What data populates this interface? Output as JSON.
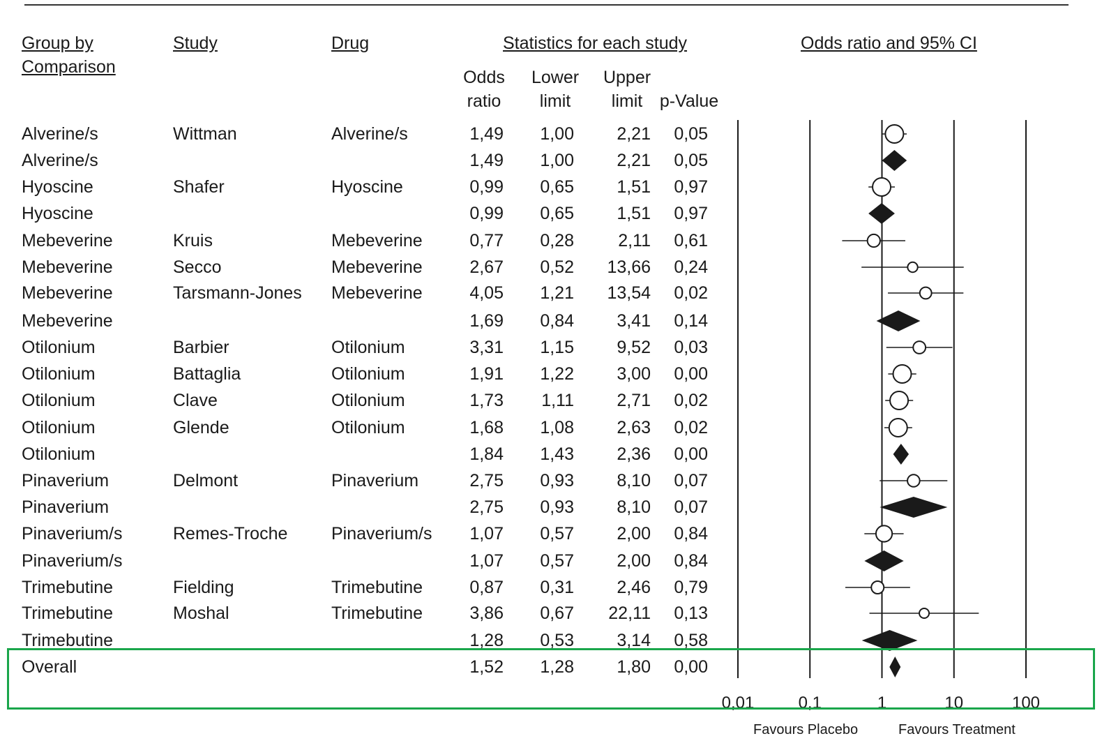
{
  "headers": {
    "group": "Group by\nComparison",
    "study": "Study",
    "drug": "Drug",
    "stats": "Statistics for each study",
    "forest": "Odds ratio and 95% CI",
    "odds": "Odds\nratio",
    "lower": "Lower\nlimit",
    "upper": "Upper\nlimit",
    "pvalue": "p-Value"
  },
  "rows": [
    {
      "group": "Alverine/s",
      "study": "Wittman",
      "drug": "Alverine/s",
      "or": "1,49",
      "lower": "1,00",
      "upper": "2,21",
      "p": "0,05"
    },
    {
      "group": "Alverine/s",
      "study": "",
      "drug": "",
      "or": "1,49",
      "lower": "1,00",
      "upper": "2,21",
      "p": "0,05"
    },
    {
      "group": "Hyoscine",
      "study": "Shafer",
      "drug": "Hyoscine",
      "or": "0,99",
      "lower": "0,65",
      "upper": "1,51",
      "p": "0,97"
    },
    {
      "group": "Hyoscine",
      "study": "",
      "drug": "",
      "or": "0,99",
      "lower": "0,65",
      "upper": "1,51",
      "p": "0,97"
    },
    {
      "group": "Mebeverine",
      "study": "Kruis",
      "drug": "Mebeverine",
      "or": "0,77",
      "lower": "0,28",
      "upper": "2,11",
      "p": "0,61"
    },
    {
      "group": "Mebeverine",
      "study": "Secco",
      "drug": "Mebeverine",
      "or": "2,67",
      "lower": "0,52",
      "upper": "13,66",
      "p": "0,24"
    },
    {
      "group": "Mebeverine",
      "study": "Tarsmann-Jones",
      "drug": "Mebeverine",
      "or": "4,05",
      "lower": "1,21",
      "upper": "13,54",
      "p": "0,02"
    },
    {
      "group": "Mebeverine",
      "study": "",
      "drug": "",
      "or": "1,69",
      "lower": "0,84",
      "upper": "3,41",
      "p": "0,14"
    },
    {
      "group": "Otilonium",
      "study": "Barbier",
      "drug": "Otilonium",
      "or": "3,31",
      "lower": "1,15",
      "upper": "9,52",
      "p": "0,03"
    },
    {
      "group": "Otilonium",
      "study": "Battaglia",
      "drug": "Otilonium",
      "or": "1,91",
      "lower": "1,22",
      "upper": "3,00",
      "p": "0,00"
    },
    {
      "group": "Otilonium",
      "study": "Clave",
      "drug": "Otilonium",
      "or": "1,73",
      "lower": "1,11",
      "upper": "2,71",
      "p": "0,02"
    },
    {
      "group": "Otilonium",
      "study": "Glende",
      "drug": "Otilonium",
      "or": "1,68",
      "lower": "1,08",
      "upper": "2,63",
      "p": "0,02"
    },
    {
      "group": "Otilonium",
      "study": "",
      "drug": "",
      "or": "1,84",
      "lower": "1,43",
      "upper": "2,36",
      "p": "0,00"
    },
    {
      "group": "Pinaverium",
      "study": "Delmont",
      "drug": "Pinaverium",
      "or": "2,75",
      "lower": "0,93",
      "upper": "8,10",
      "p": "0,07"
    },
    {
      "group": "Pinaverium",
      "study": "",
      "drug": "",
      "or": "2,75",
      "lower": "0,93",
      "upper": "8,10",
      "p": "0,07"
    },
    {
      "group": "Pinaverium/s",
      "study": "Remes-Troche",
      "drug": "Pinaverium/s",
      "or": "1,07",
      "lower": "0,57",
      "upper": "2,00",
      "p": "0,84"
    },
    {
      "group": "Pinaverium/s",
      "study": "",
      "drug": "",
      "or": "1,07",
      "lower": "0,57",
      "upper": "2,00",
      "p": "0,84"
    },
    {
      "group": "Trimebutine",
      "study": "Fielding",
      "drug": "Trimebutine",
      "or": "0,87",
      "lower": "0,31",
      "upper": "2,46",
      "p": "0,79"
    },
    {
      "group": "Trimebutine",
      "study": "Moshal",
      "drug": "Trimebutine",
      "or": "3,86",
      "lower": "0,67",
      "upper": "22,11",
      "p": "0,13"
    },
    {
      "group": "Trimebutine",
      "study": "",
      "drug": "",
      "or": "1,28",
      "lower": "0,53",
      "upper": "3,14",
      "p": "0,58"
    },
    {
      "group": "Overall",
      "study": "",
      "drug": "",
      "or": "1,52",
      "lower": "1,28",
      "upper": "1,80",
      "p": "0,00"
    }
  ],
  "footer": {
    "favours_placebo": "Favours Placebo",
    "favours_treatment": "Favours Treatment"
  },
  "chart_data": {
    "type": "forest",
    "title": "Odds ratio and 95% CI",
    "x_scale": "log",
    "xlim": [
      0.01,
      100
    ],
    "x_ticks": [
      0.01,
      0.1,
      1,
      10,
      100
    ],
    "x_tick_labels": [
      "0,01",
      "0,1",
      "1",
      "10",
      "100"
    ],
    "reference_line": 1,
    "grid": "vertical lines at ticks",
    "markers": {
      "study": "open circle",
      "summary": "filled diamond"
    },
    "points": [
      {
        "label": "Wittman",
        "kind": "study",
        "or": 1.49,
        "lower": 1.0,
        "upper": 2.21
      },
      {
        "label": "Alverine/s",
        "kind": "summary",
        "or": 1.49,
        "lower": 1.0,
        "upper": 2.21
      },
      {
        "label": "Shafer",
        "kind": "study",
        "or": 0.99,
        "lower": 0.65,
        "upper": 1.51
      },
      {
        "label": "Hyoscine",
        "kind": "summary",
        "or": 0.99,
        "lower": 0.65,
        "upper": 1.51
      },
      {
        "label": "Kruis",
        "kind": "study",
        "or": 0.77,
        "lower": 0.28,
        "upper": 2.11
      },
      {
        "label": "Secco",
        "kind": "study",
        "or": 2.67,
        "lower": 0.52,
        "upper": 13.66
      },
      {
        "label": "Tarsmann-Jones",
        "kind": "study",
        "or": 4.05,
        "lower": 1.21,
        "upper": 13.54
      },
      {
        "label": "Mebeverine",
        "kind": "summary",
        "or": 1.69,
        "lower": 0.84,
        "upper": 3.41
      },
      {
        "label": "Barbier",
        "kind": "study",
        "or": 3.31,
        "lower": 1.15,
        "upper": 9.52
      },
      {
        "label": "Battaglia",
        "kind": "study",
        "or": 1.91,
        "lower": 1.22,
        "upper": 3.0
      },
      {
        "label": "Clave",
        "kind": "study",
        "or": 1.73,
        "lower": 1.11,
        "upper": 2.71
      },
      {
        "label": "Glende",
        "kind": "study",
        "or": 1.68,
        "lower": 1.08,
        "upper": 2.63
      },
      {
        "label": "Otilonium",
        "kind": "summary",
        "or": 1.84,
        "lower": 1.43,
        "upper": 2.36
      },
      {
        "label": "Delmont",
        "kind": "study",
        "or": 2.75,
        "lower": 0.93,
        "upper": 8.1
      },
      {
        "label": "Pinaverium",
        "kind": "summary",
        "or": 2.75,
        "lower": 0.93,
        "upper": 8.1
      },
      {
        "label": "Remes-Troche",
        "kind": "study",
        "or": 1.07,
        "lower": 0.57,
        "upper": 2.0
      },
      {
        "label": "Pinaverium/s",
        "kind": "summary",
        "or": 1.07,
        "lower": 0.57,
        "upper": 2.0
      },
      {
        "label": "Fielding",
        "kind": "study",
        "or": 0.87,
        "lower": 0.31,
        "upper": 2.46
      },
      {
        "label": "Moshal",
        "kind": "study",
        "or": 3.86,
        "lower": 0.67,
        "upper": 22.11
      },
      {
        "label": "Trimebutine",
        "kind": "summary",
        "or": 1.28,
        "lower": 0.53,
        "upper": 3.14
      },
      {
        "label": "Overall",
        "kind": "summary",
        "or": 1.52,
        "lower": 1.28,
        "upper": 1.8
      }
    ]
  },
  "colors": {
    "ink": "#1a1a1a",
    "highlight": "#1aa64b"
  }
}
